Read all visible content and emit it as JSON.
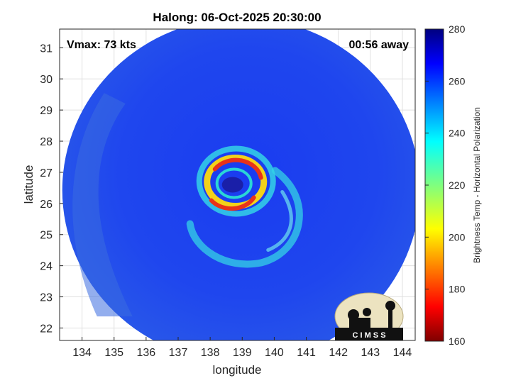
{
  "chart_data": {
    "type": "heatmap",
    "title": "Halong: 06-Oct-2025 20:30:00",
    "xlabel": "longitude",
    "ylabel": "latitude",
    "xlim": [
      133.3,
      144.4
    ],
    "ylim": [
      21.6,
      31.6
    ],
    "xticks": [
      134,
      135,
      136,
      137,
      138,
      139,
      140,
      141,
      142,
      143,
      144
    ],
    "yticks": [
      22,
      23,
      24,
      25,
      26,
      27,
      28,
      29,
      30,
      31
    ],
    "grid": true,
    "colorbar": {
      "label": "Brightness Temp - Horizontal Polarization",
      "range": [
        160,
        280
      ],
      "ticks": [
        160,
        180,
        200,
        220,
        240,
        260,
        280
      ],
      "colormap": "jet"
    },
    "annotations": {
      "vmax": "Vmax: 73 kts",
      "time_away": "00:56 away"
    },
    "storm_center": {
      "lon": 138.7,
      "lat": 26.6
    },
    "swath_center": {
      "lon": 138.9,
      "lat": 26.7
    },
    "logo_text": "C I M S S"
  },
  "colors": {
    "background_ring": "#1f3fe6",
    "eyewall_warm": "#e8321a",
    "eyewall_yellow": "#f2d21a",
    "rainband_cyan": "#34d2e6",
    "eye": "#1a1fa8",
    "logo_bg": "#ece3c0"
  }
}
